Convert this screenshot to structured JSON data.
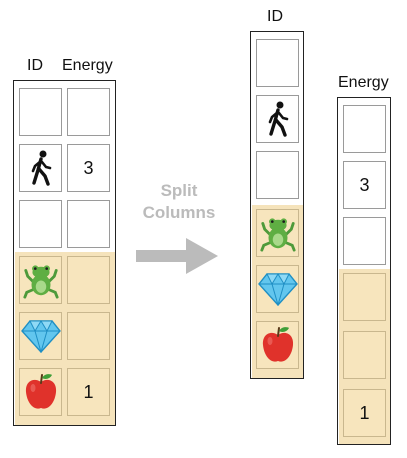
{
  "original": {
    "headers": {
      "id": "ID",
      "energy": "Energy"
    },
    "rows": [
      {
        "icon": "",
        "energy": ""
      },
      {
        "icon": "person-walking-icon",
        "energy": "3"
      },
      {
        "icon": "",
        "energy": ""
      },
      {
        "icon": "frog-icon",
        "energy": ""
      },
      {
        "icon": "diamond-icon",
        "energy": ""
      },
      {
        "icon": "apple-icon",
        "energy": "1"
      }
    ]
  },
  "arrow_label": {
    "line1": "Split",
    "line2": "Columns"
  },
  "split": {
    "id_header": "ID",
    "energy_header": "Energy",
    "energy_values": [
      "",
      "3",
      "",
      "",
      "",
      "1"
    ]
  },
  "colors": {
    "highlight": "#f5e3bb",
    "arrow": "#bbbbbb"
  }
}
